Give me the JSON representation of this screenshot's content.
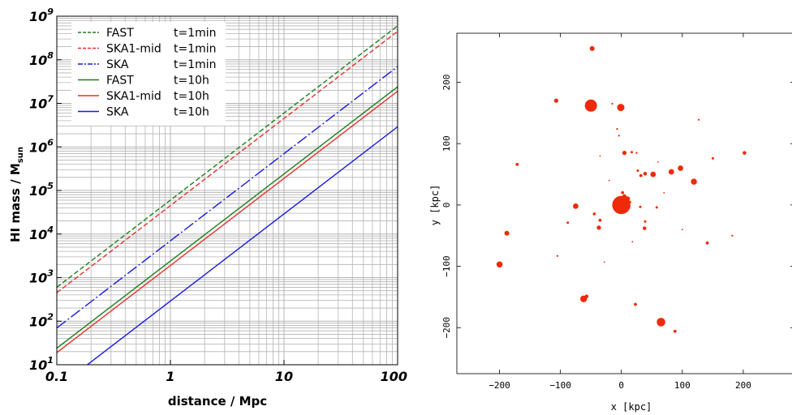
{
  "chart_data": [
    {
      "type": "line",
      "xscale": "log",
      "yscale": "log",
      "xlim": [
        0.1,
        100
      ],
      "ylim": [
        10,
        1000000000
      ],
      "xlabel": "distance / Mpc",
      "ylabel": "HI mass / M",
      "ylabel_subscript": "sun",
      "xticks": [
        {
          "value": 0.1,
          "label": "0.1"
        },
        {
          "value": 1,
          "label": "1"
        },
        {
          "value": 10,
          "label": "10"
        },
        {
          "value": 100,
          "label": "100"
        }
      ],
      "yticks": [
        {
          "value": 10,
          "base": "10",
          "exp": "1"
        },
        {
          "value": 100,
          "base": "10",
          "exp": "2"
        },
        {
          "value": 1000,
          "base": "10",
          "exp": "3"
        },
        {
          "value": 10000,
          "base": "10",
          "exp": "4"
        },
        {
          "value": 100000,
          "base": "10",
          "exp": "5"
        },
        {
          "value": 1000000,
          "base": "10",
          "exp": "6"
        },
        {
          "value": 10000000,
          "base": "10",
          "exp": "7"
        },
        {
          "value": 100000000,
          "base": "10",
          "exp": "8"
        },
        {
          "value": 1000000000,
          "base": "10",
          "exp": "9"
        }
      ],
      "grid": true,
      "legend_position": "top-left",
      "series": [
        {
          "name": "FAST",
          "time": "t=1min",
          "color": "#1a7f1a",
          "dash": "dashed",
          "x": [
            0.1,
            100
          ],
          "y": [
            600,
            600000000
          ]
        },
        {
          "name": "SKA1-mid",
          "time": "t=1min",
          "color": "#e8302c",
          "dash": "dashed",
          "x": [
            0.1,
            100
          ],
          "y": [
            450,
            450000000
          ]
        },
        {
          "name": "SKA",
          "time": "t=1min",
          "color": "#1818e0",
          "dash": "dashdot",
          "x": [
            0.1,
            100
          ],
          "y": [
            70,
            70000000
          ]
        },
        {
          "name": "FAST",
          "time": "t=10h",
          "color": "#1a7f1a",
          "dash": "solid",
          "x": [
            0.1,
            100
          ],
          "y": [
            24,
            24000000
          ]
        },
        {
          "name": "SKA1-mid",
          "time": "t=10h",
          "color": "#e8302c",
          "dash": "solid",
          "x": [
            0.1,
            100
          ],
          "y": [
            19,
            19000000
          ]
        },
        {
          "name": "SKA",
          "time": "t=10h",
          "color": "#1818e0",
          "dash": "solid",
          "x": [
            0.1,
            100
          ],
          "y": [
            2.9,
            2900000
          ]
        }
      ]
    },
    {
      "type": "scatter",
      "xlabel": "x [kpc]",
      "ylabel": "y [kpc]",
      "xlim": [
        -270,
        280
      ],
      "ylim": [
        -275,
        280
      ],
      "xticks": [
        -200,
        -100,
        0,
        100,
        200
      ],
      "yticks": [
        -200,
        -100,
        0,
        100,
        200
      ],
      "marker_color": "#ee2a0a",
      "marker_size_unit": "kpc",
      "points": [
        {
          "x": 0,
          "y": 0,
          "size": 15
        },
        {
          "x": 10,
          "y": 10,
          "size": 4
        },
        {
          "x": 5,
          "y": 14,
          "size": 3.5
        },
        {
          "x": -5,
          "y": 10,
          "size": 3
        },
        {
          "x": 2,
          "y": 20,
          "size": 2.5
        },
        {
          "x": -2,
          "y": 3,
          "size": 2.5
        },
        {
          "x": 14,
          "y": 5,
          "size": 2
        },
        {
          "x": -50,
          "y": 162,
          "size": 10
        },
        {
          "x": -1,
          "y": 159,
          "size": 6
        },
        {
          "x": -48,
          "y": 255,
          "size": 4
        },
        {
          "x": -107,
          "y": 170,
          "size": 3.5
        },
        {
          "x": -200,
          "y": -97,
          "size": 5
        },
        {
          "x": -188,
          "y": -46,
          "size": 4
        },
        {
          "x": -171,
          "y": 66,
          "size": 2.5
        },
        {
          "x": -62,
          "y": -153,
          "size": 5.5
        },
        {
          "x": -57,
          "y": -149,
          "size": 3
        },
        {
          "x": 65,
          "y": -191,
          "size": 7
        },
        {
          "x": 88,
          "y": -206,
          "size": 2.5
        },
        {
          "x": 23,
          "y": -162,
          "size": 2.5
        },
        {
          "x": 119,
          "y": 38,
          "size": 5
        },
        {
          "x": 97,
          "y": 60,
          "size": 4.5
        },
        {
          "x": 82,
          "y": 54,
          "size": 4.5
        },
        {
          "x": 52,
          "y": 50,
          "size": 4.5
        },
        {
          "x": 39,
          "y": 51,
          "size": 3
        },
        {
          "x": 32,
          "y": 48,
          "size": 2.5
        },
        {
          "x": 27,
          "y": 56,
          "size": 2
        },
        {
          "x": 5,
          "y": 85,
          "size": 3.5
        },
        {
          "x": 17,
          "y": 86,
          "size": 2
        },
        {
          "x": 150,
          "y": 76,
          "size": 2
        },
        {
          "x": 202,
          "y": 85,
          "size": 3
        },
        {
          "x": -75,
          "y": -2,
          "size": 4.5
        },
        {
          "x": -37,
          "y": -37,
          "size": 3.5
        },
        {
          "x": -35,
          "y": -25,
          "size": 2.5
        },
        {
          "x": -44,
          "y": -14,
          "size": 2
        },
        {
          "x": -88,
          "y": -29,
          "size": 2
        },
        {
          "x": -45,
          "y": -15,
          "size": 2
        },
        {
          "x": 38,
          "y": -38,
          "size": 3
        },
        {
          "x": 39,
          "y": -27,
          "size": 2
        },
        {
          "x": 58,
          "y": -4,
          "size": 2
        },
        {
          "x": 31,
          "y": -3,
          "size": 2
        },
        {
          "x": 141,
          "y": -62,
          "size": 2.5
        },
        {
          "x": 127,
          "y": 139,
          "size": 1.5
        },
        {
          "x": -7,
          "y": 124,
          "size": 1.5
        },
        {
          "x": -4,
          "y": 113,
          "size": 1.5
        },
        {
          "x": -15,
          "y": 165,
          "size": 1.5
        },
        {
          "x": 25,
          "y": 85,
          "size": 1.5
        },
        {
          "x": -105,
          "y": -83,
          "size": 1.5
        },
        {
          "x": 182,
          "y": -50,
          "size": 1.5
        },
        {
          "x": -28,
          "y": -93,
          "size": 1.2
        },
        {
          "x": -35,
          "y": 80,
          "size": 1.2
        },
        {
          "x": 60,
          "y": 70,
          "size": 1.2
        },
        {
          "x": 100,
          "y": -40,
          "size": 1.2
        },
        {
          "x": 18,
          "y": -60,
          "size": 1.2
        },
        {
          "x": -20,
          "y": 40,
          "size": 1.2
        },
        {
          "x": 70,
          "y": 20,
          "size": 1.2
        }
      ]
    }
  ]
}
